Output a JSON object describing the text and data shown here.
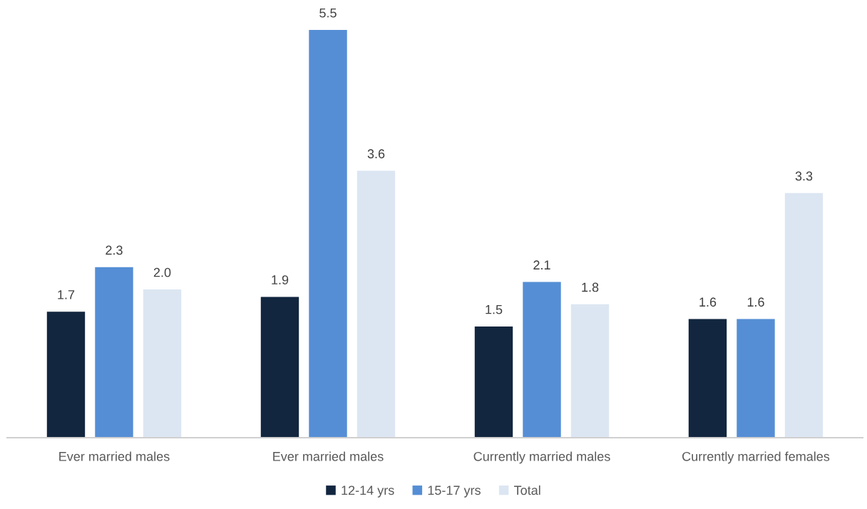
{
  "chart_data": {
    "type": "bar",
    "categories": [
      "Ever married males",
      "Ever married males",
      "Currently married males",
      "Currently married females"
    ],
    "series": [
      {
        "name": "12-14 yrs",
        "color": "#12263f",
        "values": [
          1.7,
          1.9,
          1.5,
          1.6
        ],
        "value_labels": [
          "1.7",
          "1.9",
          "1.5",
          "1.6"
        ]
      },
      {
        "name": "15-17 yrs",
        "color": "#558ed5",
        "values": [
          2.3,
          5.5,
          2.1,
          1.6
        ],
        "value_labels": [
          "2.3",
          "5.5",
          "2.1",
          "1.6"
        ]
      },
      {
        "name": "Total",
        "color": "#dce6f2",
        "values": [
          2.0,
          3.6,
          1.8,
          3.3
        ],
        "value_labels": [
          "2.0",
          "3.6",
          "1.8",
          "3.3"
        ]
      }
    ],
    "tick_labels": "x",
    "grid": false,
    "legend": "bottom"
  }
}
